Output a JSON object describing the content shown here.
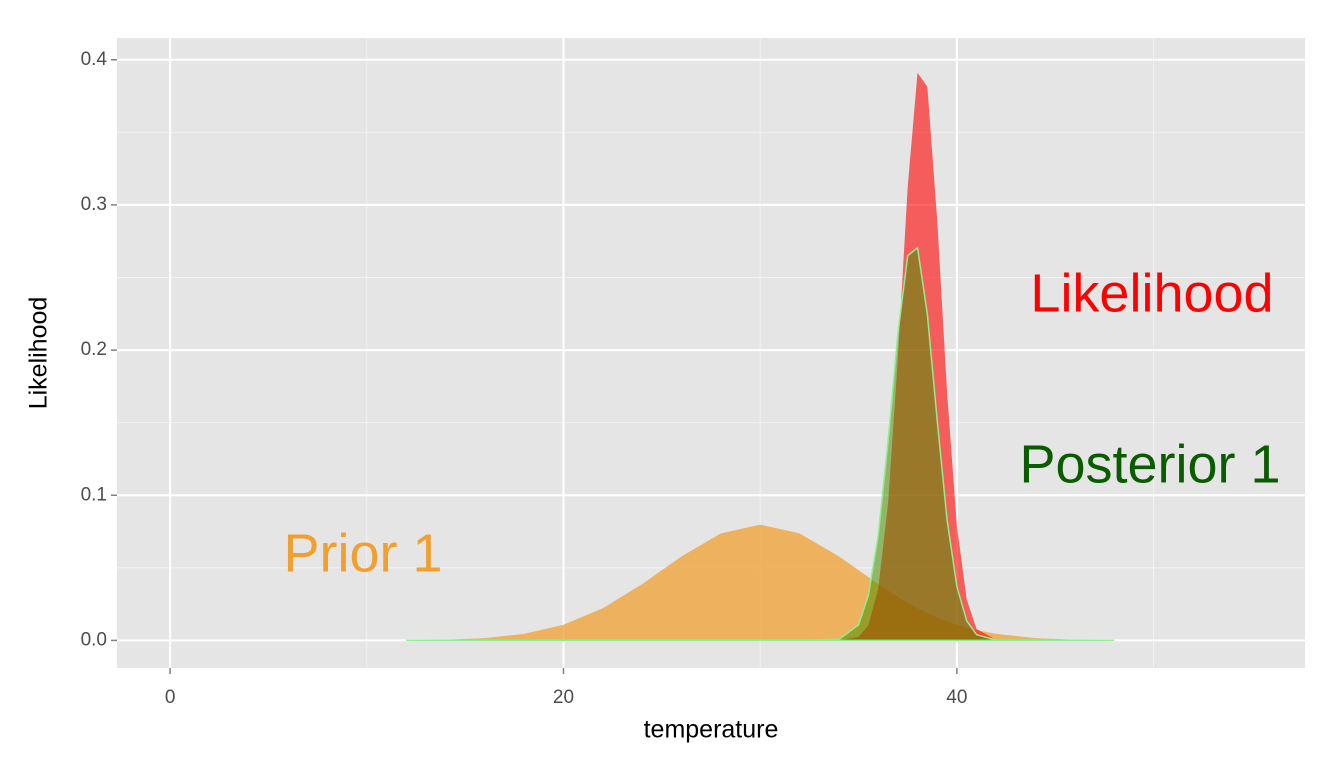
{
  "chart_data": {
    "type": "area",
    "x_label": "temperature",
    "y_label": "Likelihood",
    "x": [
      12,
      14,
      16,
      18,
      20,
      22,
      24,
      26,
      28,
      30,
      32,
      34,
      35,
      35.5,
      36,
      36.5,
      37,
      37.5,
      38,
      38.5,
      39,
      39.5,
      40,
      40.5,
      41,
      42,
      44,
      46,
      48
    ],
    "series": [
      {
        "name": "Prior 1",
        "color": "#f0a030",
        "values": [
          0.0001,
          0.0005,
          0.0016,
          0.0045,
          0.0108,
          0.0222,
          0.0388,
          0.0579,
          0.0737,
          0.0798,
          0.0737,
          0.0579,
          0.0484,
          0.0436,
          0.0388,
          0.0343,
          0.03,
          0.0259,
          0.0222,
          0.0188,
          0.0158,
          0.0131,
          0.0108,
          0.0088,
          0.0071,
          0.0045,
          0.0016,
          0.0005,
          0.0001
        ]
      },
      {
        "name": "Likelihood",
        "color": "#ff0000",
        "values": [
          0,
          0,
          0,
          0,
          0,
          0,
          0,
          0,
          0,
          0,
          0,
          0.0001,
          0.0024,
          0.0104,
          0.0355,
          0.094,
          0.1942,
          0.3123,
          0.391,
          0.3814,
          0.2897,
          0.1714,
          0.079,
          0.0283,
          0.0079,
          0.0003,
          0,
          0,
          0
        ]
      },
      {
        "name": "Posterior 1",
        "color": "#0b5c00",
        "fill": "#4f8f00",
        "outline": "#90ee90",
        "values": [
          0,
          0,
          0,
          0,
          0,
          0,
          0,
          0,
          0,
          0,
          0,
          0.0007,
          0.0107,
          0.0309,
          0.0721,
          0.1368,
          0.2112,
          0.265,
          0.2705,
          0.2246,
          0.1517,
          0.0833,
          0.0372,
          0.0135,
          0.004,
          0.0002,
          0,
          0,
          0
        ]
      }
    ],
    "xlim": [
      -2.7,
      57.7
    ],
    "ylim": [
      -0.019,
      0.415
    ],
    "xticks": [
      0,
      20,
      40
    ],
    "xminor": [
      10,
      30,
      50
    ],
    "yticks": [
      {
        "value": 0,
        "label": "0.0"
      },
      0.1,
      0.2,
      0.3,
      0.4
    ],
    "yminor": [
      0.05,
      0.15,
      0.25,
      0.35
    ],
    "grid": true
  }
}
